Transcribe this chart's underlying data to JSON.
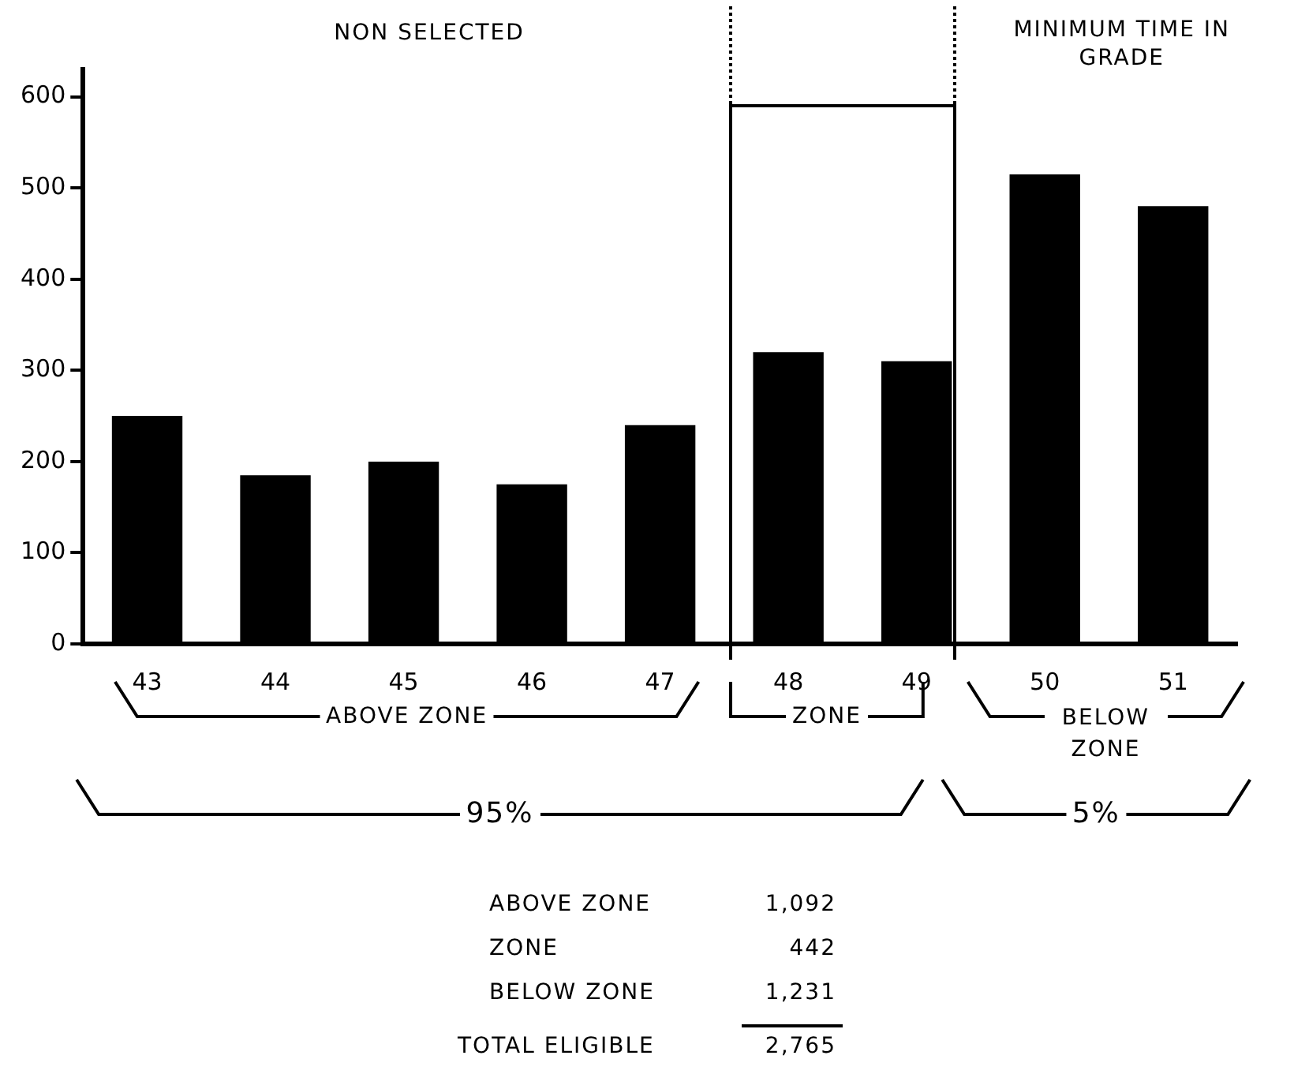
{
  "chart_data": {
    "type": "bar",
    "categories": [
      "43",
      "44",
      "45",
      "46",
      "47",
      "48",
      "49",
      "50",
      "51"
    ],
    "values": [
      250,
      185,
      200,
      175,
      240,
      320,
      310,
      515,
      480
    ],
    "color": "#000000",
    "ylim": [
      0,
      630
    ],
    "yticks": [
      0,
      100,
      200,
      300,
      400,
      500,
      600
    ],
    "grid": false,
    "legend": false,
    "annotations": [
      "NON SELECTED",
      "MINIMUM TIME IN GRADE",
      "ABOVE ZONE",
      "ZONE",
      "BELOW ZONE",
      "95%",
      "5%",
      "ABOVE ZONE",
      "1,092",
      "ZONE",
      "442",
      "BELOW ZONE",
      "1,231",
      "TOTAL ELIGIBLE",
      "2,765"
    ]
  }
}
